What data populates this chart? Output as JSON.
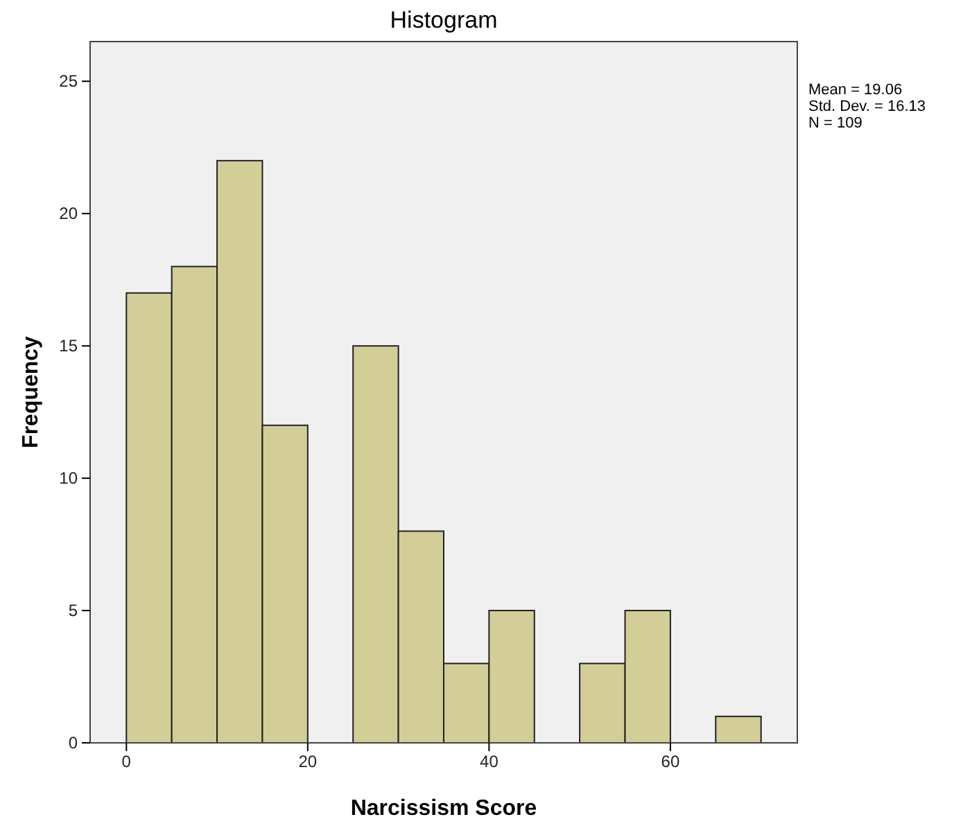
{
  "chart_data": {
    "type": "histogram",
    "title": "Histogram",
    "xlabel": "Narcissism Score",
    "ylabel": "Frequency",
    "bins": [
      0,
      5,
      10,
      15,
      20,
      25,
      30,
      35,
      40,
      45,
      50,
      55,
      60,
      65,
      70
    ],
    "values": [
      17,
      18,
      22,
      12,
      0,
      15,
      8,
      3,
      5,
      0,
      3,
      5,
      0,
      1
    ],
    "color": "#d3ce97",
    "xlim": [
      -4,
      74
    ],
    "xticks": [
      0,
      20,
      40,
      60
    ],
    "ylim": [
      0,
      26.5
    ],
    "yticks": [
      0,
      5,
      10,
      15,
      20,
      25
    ],
    "grid": false,
    "annotations": [
      "Mean = 19.06",
      "Std. Dev. = 16.13",
      "N = 109"
    ]
  }
}
